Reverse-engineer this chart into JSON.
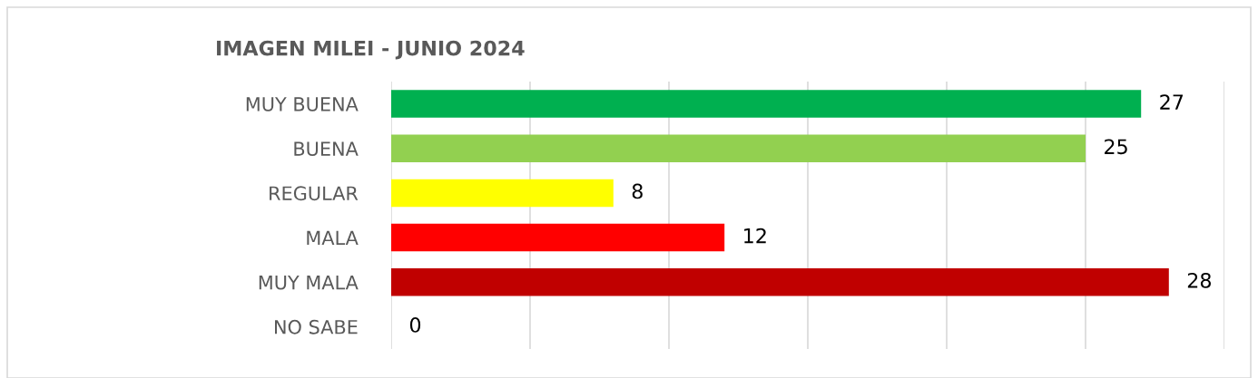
{
  "chart_data": {
    "type": "bar",
    "orientation": "horizontal",
    "title": "IMAGEN MILEI - JUNIO 2024",
    "categories": [
      "MUY BUENA",
      "BUENA",
      "REGULAR",
      "MALA",
      "MUY MALA",
      "NO SABE"
    ],
    "values": [
      27,
      25,
      8,
      12,
      28,
      0
    ],
    "colors": [
      "#00b050",
      "#92d050",
      "#ffff00",
      "#ff0000",
      "#c00000",
      "#7f7f7f"
    ],
    "xlim": [
      0,
      30
    ],
    "xticks": [
      {
        "value": 0,
        "label": null
      },
      {
        "value": 5,
        "label": null
      },
      {
        "value": 10,
        "label": null
      },
      {
        "value": 15,
        "label": null
      },
      {
        "value": 20,
        "label": null
      },
      {
        "value": 25,
        "label": null
      },
      {
        "value": 30,
        "label": null
      }
    ],
    "grid": "x",
    "tick_labels": "y",
    "data_labels": true
  }
}
